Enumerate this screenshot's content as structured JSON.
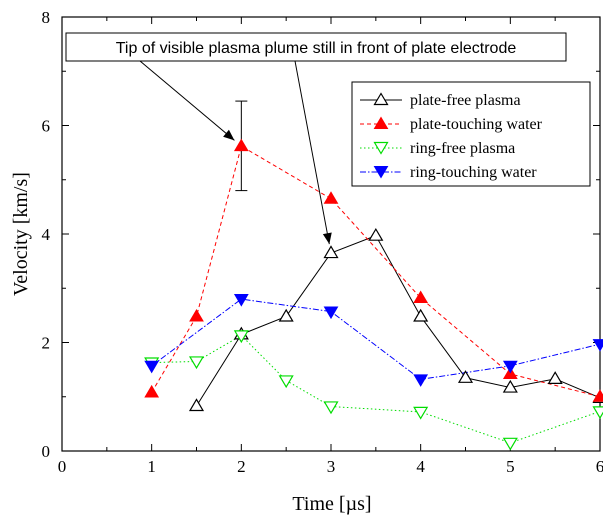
{
  "chart_data": {
    "type": "line",
    "xlabel": "Time [µs]",
    "ylabel": "Velocity [km/s]",
    "xlim": [
      0,
      6
    ],
    "ylim": [
      0,
      8
    ],
    "xticks": [
      0,
      1,
      2,
      3,
      4,
      5,
      6
    ],
    "yticks": [
      0,
      2,
      4,
      6,
      8
    ],
    "grid": false,
    "legend_position": "top-right",
    "series": [
      {
        "name": "plate-free plasma",
        "color": "#000000",
        "line_style": "solid",
        "marker": "triangle-up-open",
        "x": [
          1.5,
          2.0,
          2.5,
          3.0,
          3.5,
          4.0,
          4.5,
          5.0,
          5.5,
          6.0
        ],
        "y": [
          0.83,
          2.15,
          2.48,
          3.65,
          3.97,
          2.48,
          1.35,
          1.17,
          1.33,
          0.98
        ]
      },
      {
        "name": "plate-touching water",
        "color": "#ff0000",
        "line_style": "dashed",
        "marker": "triangle-up-filled",
        "x": [
          1.0,
          1.5,
          2.0,
          3.0,
          4.0,
          5.0,
          6.0
        ],
        "y": [
          1.08,
          2.48,
          5.62,
          4.65,
          2.82,
          1.42,
          1.0
        ]
      },
      {
        "name": "ring-free plasma",
        "color": "#00dd00",
        "line_style": "dotted",
        "marker": "triangle-down-open",
        "x": [
          1.0,
          1.5,
          2.0,
          2.5,
          3.0,
          4.0,
          5.0,
          6.0
        ],
        "y": [
          1.63,
          1.65,
          2.13,
          1.3,
          0.82,
          0.72,
          0.15,
          0.73
        ]
      },
      {
        "name": "ring-touching water",
        "color": "#0000ff",
        "line_style": "dash-dot",
        "marker": "triangle-down-filled",
        "x": [
          1.0,
          2.0,
          3.0,
          4.0,
          5.0,
          6.0
        ],
        "y": [
          1.57,
          2.8,
          2.57,
          1.32,
          1.57,
          1.97
        ]
      }
    ],
    "error_bars": [
      {
        "series": "plate-touching water",
        "x": 2.0,
        "y": 5.62,
        "low": 4.8,
        "high": 6.45
      }
    ],
    "annotation": {
      "text": "Tip of visible plasma plume still in front of plate electrode",
      "targets": [
        {
          "x": 2.0,
          "y": 5.62
        },
        {
          "x": 3.0,
          "y": 3.65
        }
      ]
    }
  }
}
